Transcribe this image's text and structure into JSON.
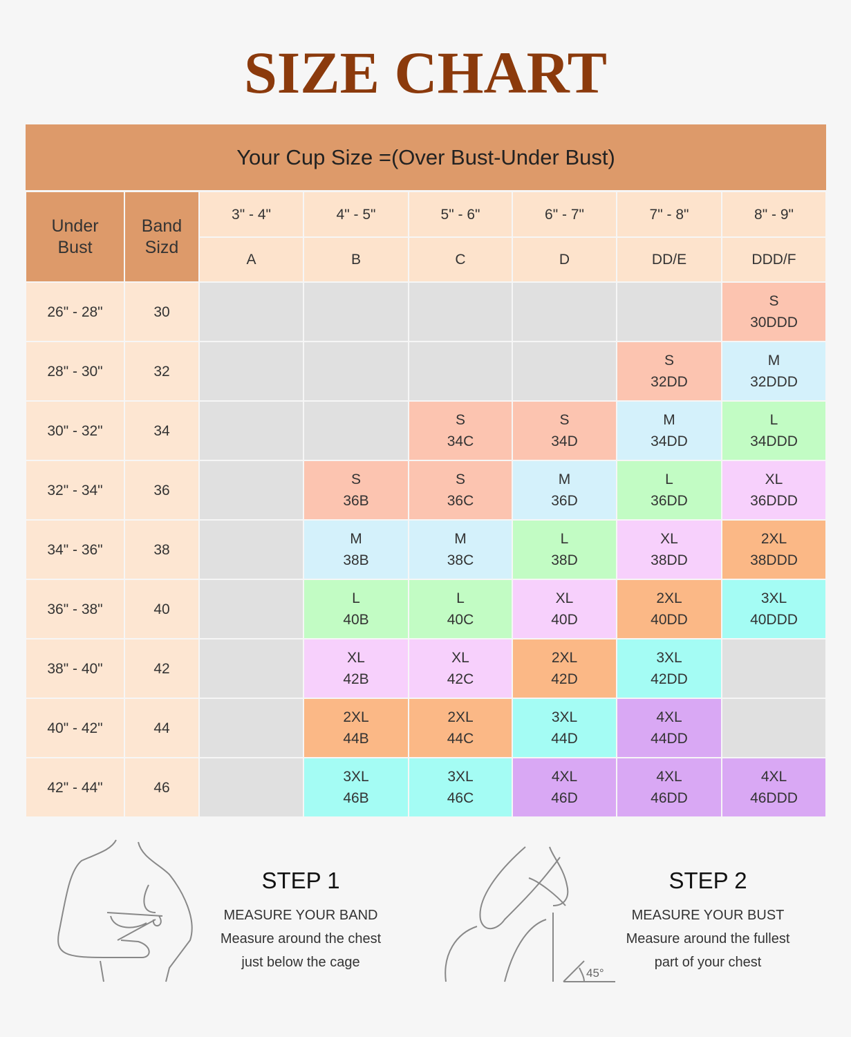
{
  "title": "SIZE CHART",
  "banner": "Your Cup Size =(Over Bust-Under Bust)",
  "table": {
    "headers": [
      "Under Bust",
      "Band Sizd"
    ],
    "cups": [
      {
        "range": "3\" - 4\"",
        "cup": "A"
      },
      {
        "range": "4\" - 5\"",
        "cup": "B"
      },
      {
        "range": "5\" - 6\"",
        "cup": "C"
      },
      {
        "range": "6\" - 7\"",
        "cup": "D"
      },
      {
        "range": "7\" - 8\"",
        "cup": "DD/E"
      },
      {
        "range": "8\" - 9\"",
        "cup": "DDD/F"
      }
    ],
    "rows": [
      {
        "under": "26\" - 28\"",
        "band": "30",
        "cells": [
          null,
          null,
          null,
          null,
          null,
          {
            "size": "S",
            "code": "30DDD",
            "color": "#fcc4b0"
          }
        ]
      },
      {
        "under": "28\" - 30\"",
        "band": "32",
        "cells": [
          null,
          null,
          null,
          null,
          {
            "size": "S",
            "code": "32DD",
            "color": "#fcc4b0"
          },
          {
            "size": "M",
            "code": "32DDD",
            "color": "#d4f1fb"
          }
        ]
      },
      {
        "under": "30\" - 32\"",
        "band": "34",
        "cells": [
          null,
          null,
          {
            "size": "S",
            "code": "34C",
            "color": "#fcc4b0"
          },
          {
            "size": "S",
            "code": "34D",
            "color": "#fcc4b0"
          },
          {
            "size": "M",
            "code": "34DD",
            "color": "#d4f1fb"
          },
          {
            "size": "L",
            "code": "34DDD",
            "color": "#c2fcc4"
          }
        ]
      },
      {
        "under": "32\" - 34\"",
        "band": "36",
        "cells": [
          null,
          {
            "size": "S",
            "code": "36B",
            "color": "#fcc4b0"
          },
          {
            "size": "S",
            "code": "36C",
            "color": "#fcc4b0"
          },
          {
            "size": "M",
            "code": "36D",
            "color": "#d4f1fb"
          },
          {
            "size": "L",
            "code": "36DD",
            "color": "#c2fcc4"
          },
          {
            "size": "XL",
            "code": "36DDD",
            "color": "#f7d0fc"
          }
        ]
      },
      {
        "under": "34\" - 36\"",
        "band": "38",
        "cells": [
          null,
          {
            "size": "M",
            "code": "38B",
            "color": "#d4f1fb"
          },
          {
            "size": "M",
            "code": "38C",
            "color": "#d4f1fb"
          },
          {
            "size": "L",
            "code": "38D",
            "color": "#c2fcc4"
          },
          {
            "size": "XL",
            "code": "38DD",
            "color": "#f7d0fc"
          },
          {
            "size": "2XL",
            "code": "38DDD",
            "color": "#fbb886"
          }
        ]
      },
      {
        "under": "36\" - 38\"",
        "band": "40",
        "cells": [
          null,
          {
            "size": "L",
            "code": "40B",
            "color": "#c2fcc4"
          },
          {
            "size": "L",
            "code": "40C",
            "color": "#c2fcc4"
          },
          {
            "size": "XL",
            "code": "40D",
            "color": "#f7d0fc"
          },
          {
            "size": "2XL",
            "code": "40DD",
            "color": "#fbb886"
          },
          {
            "size": "3XL",
            "code": "40DDD",
            "color": "#a4fcf4"
          }
        ]
      },
      {
        "under": "38\" - 40\"",
        "band": "42",
        "cells": [
          null,
          {
            "size": "XL",
            "code": "42B",
            "color": "#f7d0fc"
          },
          {
            "size": "XL",
            "code": "42C",
            "color": "#f7d0fc"
          },
          {
            "size": "2XL",
            "code": "42D",
            "color": "#fbb886"
          },
          {
            "size": "3XL",
            "code": "42DD",
            "color": "#a4fcf4"
          },
          null
        ]
      },
      {
        "under": "40\" - 42\"",
        "band": "44",
        "cells": [
          null,
          {
            "size": "2XL",
            "code": "44B",
            "color": "#fbb886"
          },
          {
            "size": "2XL",
            "code": "44C",
            "color": "#fbb886"
          },
          {
            "size": "3XL",
            "code": "44D",
            "color": "#a4fcf4"
          },
          {
            "size": "4XL",
            "code": "44DD",
            "color": "#d9a8f4"
          },
          null
        ]
      },
      {
        "under": "42\" - 44\"",
        "band": "46",
        "cells": [
          null,
          {
            "size": "3XL",
            "code": "46B",
            "color": "#a4fcf4"
          },
          {
            "size": "3XL",
            "code": "46C",
            "color": "#a4fcf4"
          },
          {
            "size": "4XL",
            "code": "46D",
            "color": "#d9a8f4"
          },
          {
            "size": "4XL",
            "code": "46DD",
            "color": "#d9a8f4"
          },
          {
            "size": "4XL",
            "code": "46DDD",
            "color": "#d9a8f4"
          }
        ]
      }
    ]
  },
  "steps": [
    {
      "title": "STEP 1",
      "subtitle": "MEASURE YOUR BAND",
      "text": "Measure around the chest just below the cage"
    },
    {
      "title": "STEP 2",
      "subtitle": "MEASURE YOUR BUST",
      "text": "Measure around the fullest part of your chest",
      "angle": "45°"
    }
  ]
}
